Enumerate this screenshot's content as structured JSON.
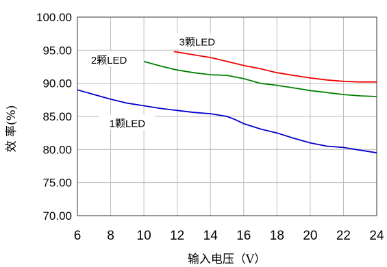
{
  "chart_data": {
    "type": "line",
    "xlabel": "输入电压（V）",
    "ylabel": "效  率(%)",
    "xlim": [
      6,
      24
    ],
    "ylim": [
      70,
      100
    ],
    "x_ticks": [
      "6",
      "8",
      "10",
      "12",
      "14",
      "16",
      "18",
      "20",
      "22",
      "24"
    ],
    "y_ticks": [
      "70.00",
      "75.00",
      "80.00",
      "85.00",
      "90.00",
      "95.00",
      "100.00"
    ],
    "grid": true,
    "series": [
      {
        "name": "1颗LED",
        "color": "#0000cc",
        "points": [
          [
            6,
            89.0
          ],
          [
            7,
            88.3
          ],
          [
            8,
            87.6
          ],
          [
            9,
            87.0
          ],
          [
            10,
            86.6
          ],
          [
            11,
            86.2
          ],
          [
            12,
            85.9
          ],
          [
            13,
            85.6
          ],
          [
            14,
            85.4
          ],
          [
            15,
            85.0
          ],
          [
            15.5,
            84.5
          ],
          [
            16,
            83.9
          ],
          [
            17,
            83.1
          ],
          [
            18,
            82.5
          ],
          [
            19,
            81.7
          ],
          [
            20,
            81.0
          ],
          [
            21,
            80.5
          ],
          [
            22,
            80.3
          ],
          [
            23,
            79.9
          ],
          [
            24,
            79.5
          ]
        ]
      },
      {
        "name": "2颗LED",
        "color": "#008000",
        "points": [
          [
            10,
            93.3
          ],
          [
            11,
            92.6
          ],
          [
            12,
            92.0
          ],
          [
            13,
            91.6
          ],
          [
            14,
            91.3
          ],
          [
            15,
            91.2
          ],
          [
            16,
            90.7
          ],
          [
            17,
            90.0
          ],
          [
            18,
            89.7
          ],
          [
            19,
            89.3
          ],
          [
            20,
            88.9
          ],
          [
            21,
            88.6
          ],
          [
            22,
            88.3
          ],
          [
            23,
            88.1
          ],
          [
            24,
            88.0
          ]
        ]
      },
      {
        "name": "3颗LED",
        "color": "#ee0000",
        "points": [
          [
            11.8,
            94.8
          ],
          [
            13,
            94.3
          ],
          [
            14,
            93.9
          ],
          [
            15,
            93.3
          ],
          [
            16,
            92.7
          ],
          [
            17,
            92.2
          ],
          [
            18,
            91.6
          ],
          [
            19,
            91.2
          ],
          [
            20,
            90.8
          ],
          [
            21,
            90.5
          ],
          [
            22,
            90.3
          ],
          [
            23,
            90.2
          ],
          [
            24,
            90.2
          ]
        ]
      }
    ],
    "annotations": [
      {
        "text": "3颗LED",
        "series": "3颗LED",
        "x": 13.2,
        "y": 96.2
      },
      {
        "text": "2颗LED",
        "series": "2颗LED",
        "x": 7.9,
        "y": 93.5
      },
      {
        "text": "1颗LED",
        "series": "1颗LED",
        "x": 9.0,
        "y": 83.9
      }
    ]
  }
}
